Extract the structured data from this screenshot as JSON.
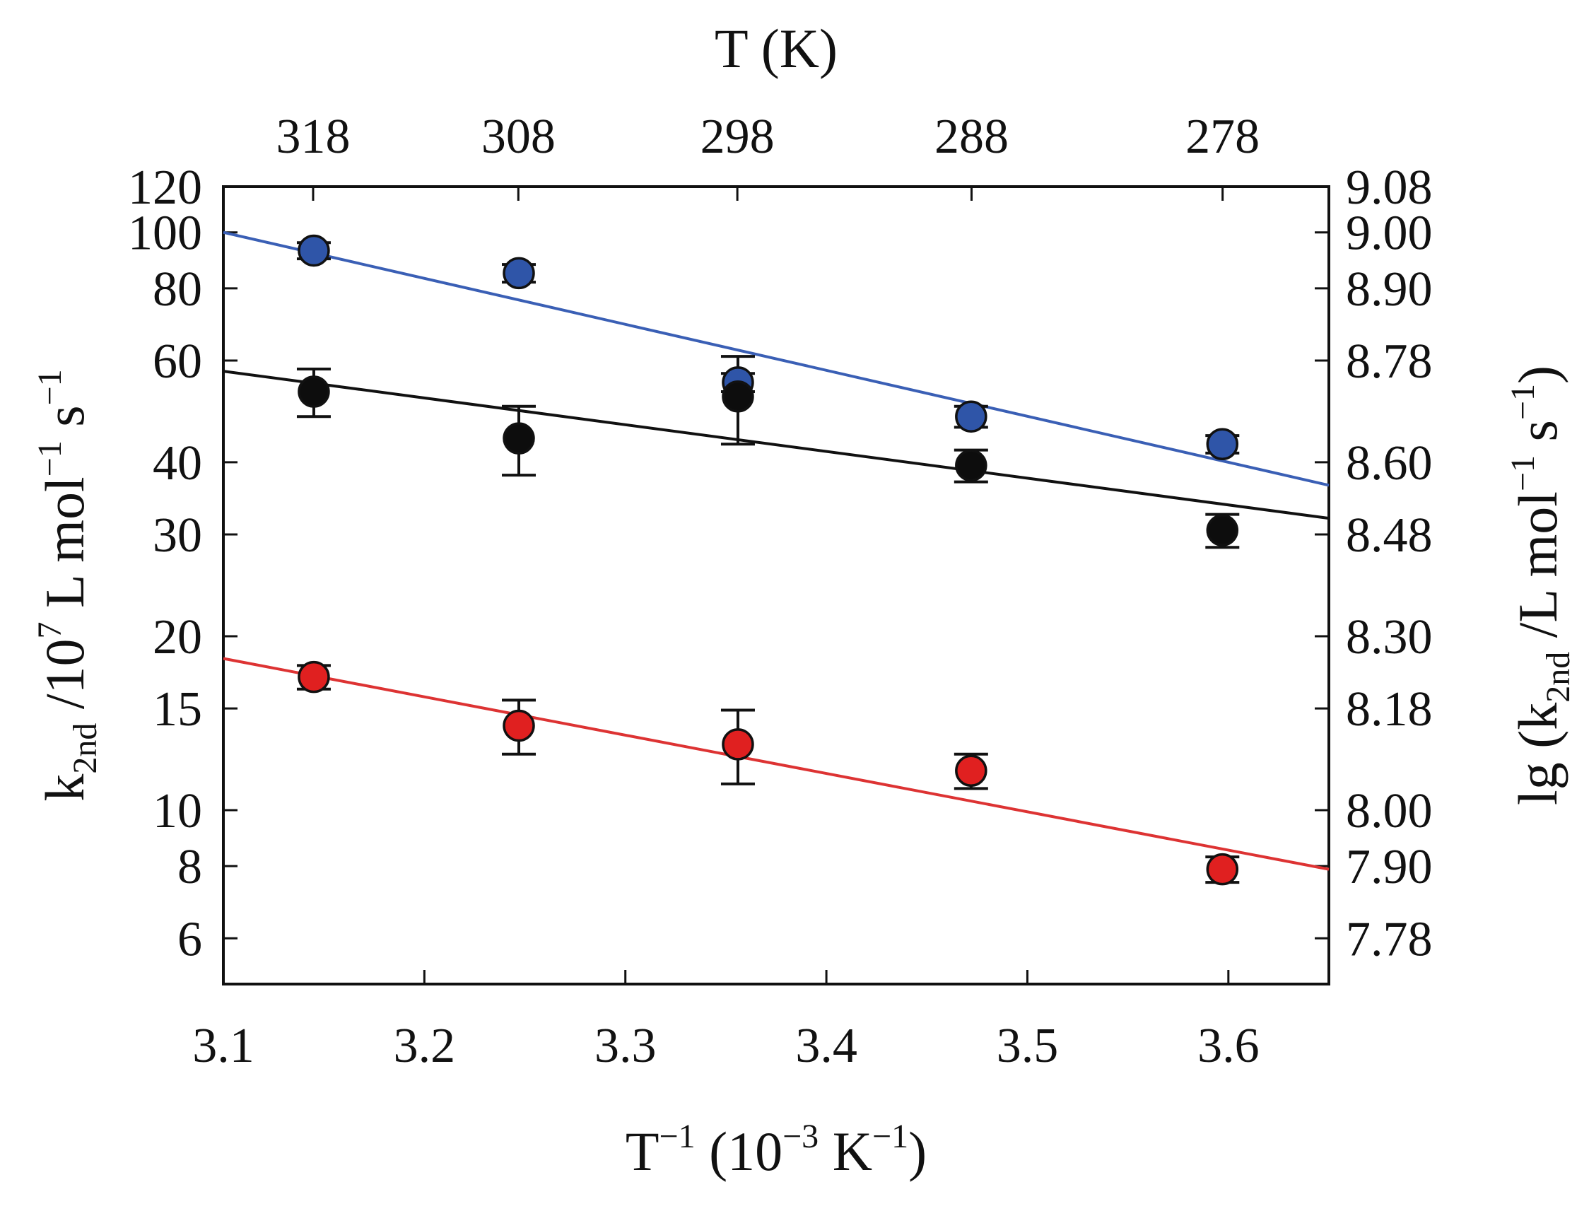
{
  "chart_data": {
    "type": "scatter",
    "title": "",
    "x_axis": {
      "label_parts": {
        "base": "T",
        "sup1": "−1",
        "mid": " (10",
        "sup2": "−3",
        "unit": " K",
        "sup3": "−1",
        "end": ")"
      },
      "range": [
        3.1,
        3.65
      ],
      "ticks": [
        3.1,
        3.2,
        3.3,
        3.4,
        3.5,
        3.6
      ],
      "tick_labels": [
        "3.1",
        "3.2",
        "3.3",
        "3.4",
        "3.5",
        "3.6"
      ]
    },
    "top_axis": {
      "label": "T (K)",
      "ticks_T": [
        318,
        308,
        298,
        288,
        278
      ],
      "tick_labels": [
        "318",
        "308",
        "298",
        "288",
        "278"
      ]
    },
    "y_axis": {
      "scale": "log",
      "range": [
        5,
        120
      ],
      "label_parts": {
        "k": "k",
        "sub": "2nd",
        "mid": " /10",
        "sup": "7",
        "unit": " L mol",
        "sup2": "−1",
        "s": " s",
        "sup3": "−1"
      },
      "ticks": [
        6,
        8,
        10,
        15,
        20,
        30,
        40,
        60,
        80,
        100,
        120
      ],
      "tick_labels": [
        "6",
        "8",
        "10",
        "15",
        "20",
        "30",
        "40",
        "60",
        "80",
        "100",
        "120"
      ]
    },
    "y_axis_right": {
      "label_parts": {
        "pre": "lg (k",
        "sub": "2nd",
        "mid": " /L mol",
        "sup": "−1",
        "s": " s",
        "sup2": "−1",
        "end": ")"
      },
      "tick_labels": [
        "7.78",
        "7.90",
        "8.00",
        "8.18",
        "8.30",
        "8.48",
        "8.60",
        "8.78",
        "8.90",
        "9.00",
        "9.08"
      ]
    },
    "series": [
      {
        "name": "blue",
        "color": "#2f55a8",
        "line_color": "#3a5fb5",
        "points": [
          {
            "x": 3.145,
            "y": 93,
            "err": 3
          },
          {
            "x": 3.247,
            "y": 85,
            "err": 3
          },
          {
            "x": 3.356,
            "y": 55,
            "err": 2
          },
          {
            "x": 3.472,
            "y": 48,
            "err": 2
          },
          {
            "x": 3.597,
            "y": 43,
            "err": 1.5
          }
        ],
        "fit": {
          "x": [
            3.1,
            3.65
          ],
          "y": [
            100,
            36.5
          ]
        }
      },
      {
        "name": "black",
        "color": "#0d0d0d",
        "line_color": "#111111",
        "points": [
          {
            "x": 3.145,
            "y": 53,
            "err": 5
          },
          {
            "x": 3.247,
            "y": 44,
            "err": 6
          },
          {
            "x": 3.356,
            "y": 52,
            "err": 9
          },
          {
            "x": 3.472,
            "y": 39.5,
            "err": 2.5
          },
          {
            "x": 3.597,
            "y": 30.5,
            "err": 2
          }
        ],
        "fit": {
          "x": [
            3.1,
            3.65
          ],
          "y": [
            57.5,
            32
          ]
        }
      },
      {
        "name": "red",
        "color": "#e02020",
        "line_color": "#dd3333",
        "points": [
          {
            "x": 3.145,
            "y": 17,
            "err": 0.8
          },
          {
            "x": 3.247,
            "y": 14,
            "err": 1.5
          },
          {
            "x": 3.356,
            "y": 13,
            "err": 1.9
          },
          {
            "x": 3.472,
            "y": 11.7,
            "err": 0.8
          },
          {
            "x": 3.597,
            "y": 7.9,
            "err": 0.4
          }
        ],
        "fit": {
          "x": [
            3.1,
            3.65
          ],
          "y": [
            18.3,
            7.9
          ]
        }
      }
    ]
  }
}
